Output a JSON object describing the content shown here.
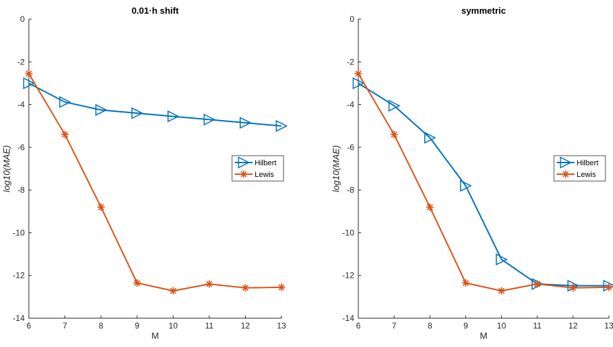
{
  "chart_data": [
    {
      "type": "line",
      "title": "0.01·h shift",
      "xlabel": "M",
      "ylabel": "log10(MAE)",
      "xlim": [
        6,
        13
      ],
      "ylim": [
        -14,
        0
      ],
      "xticks": [
        6,
        7,
        8,
        9,
        10,
        11,
        12,
        13
      ],
      "yticks": [
        0,
        -2,
        -4,
        -6,
        -8,
        -10,
        -12,
        -14
      ],
      "grid": false,
      "legend_position": "right",
      "series": [
        {
          "name": "Hilbert",
          "color": "#0072BD",
          "marker": "triangle-right",
          "x": [
            6,
            7,
            8,
            9,
            10,
            11,
            12,
            13
          ],
          "y": [
            -3.0,
            -3.88,
            -4.25,
            -4.4,
            -4.55,
            -4.7,
            -4.85,
            -5.0
          ]
        },
        {
          "name": "Lewis",
          "color": "#D95319",
          "marker": "asterisk",
          "x": [
            6,
            7,
            8,
            9,
            10,
            11,
            12,
            13
          ],
          "y": [
            -2.55,
            -5.4,
            -8.8,
            -12.35,
            -12.72,
            -12.4,
            -12.58,
            -12.55
          ]
        }
      ]
    },
    {
      "type": "line",
      "title": "symmetric",
      "xlabel": "M",
      "ylabel": "log10(MAE)",
      "xlim": [
        6,
        13
      ],
      "ylim": [
        -14,
        0
      ],
      "xticks": [
        6,
        7,
        8,
        9,
        10,
        11,
        12,
        13
      ],
      "yticks": [
        0,
        -2,
        -4,
        -6,
        -8,
        -10,
        -12,
        -14
      ],
      "grid": false,
      "legend_position": "right",
      "series": [
        {
          "name": "Hilbert",
          "color": "#0072BD",
          "marker": "triangle-right",
          "x": [
            6,
            7,
            8,
            9,
            10,
            11,
            12,
            13
          ],
          "y": [
            -3.0,
            -4.05,
            -5.55,
            -7.8,
            -11.25,
            -12.4,
            -12.48,
            -12.48
          ]
        },
        {
          "name": "Lewis",
          "color": "#D95319",
          "marker": "asterisk",
          "x": [
            6,
            7,
            8,
            9,
            10,
            11,
            12,
            13
          ],
          "y": [
            -2.55,
            -5.4,
            -8.8,
            -12.35,
            -12.72,
            -12.4,
            -12.58,
            -12.55
          ]
        }
      ]
    }
  ]
}
